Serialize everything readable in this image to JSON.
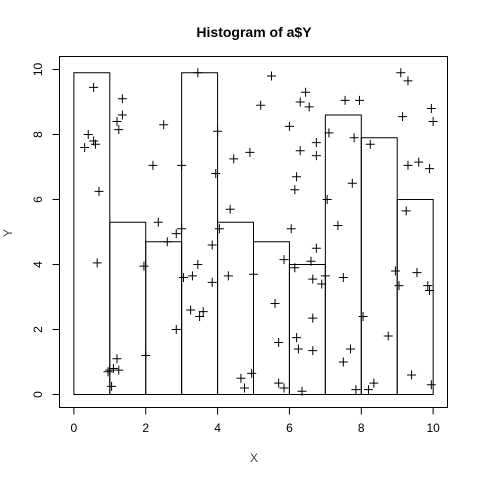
{
  "chart_data": {
    "type": "histogram-overlay-scatter",
    "title": "Histogram of a$Y",
    "xlabel": "X",
    "ylabel": "Y",
    "xlim": [
      -0.4,
      10.4
    ],
    "ylim": [
      -0.4,
      10.4
    ],
    "xticks": [
      0,
      2,
      4,
      6,
      8,
      10
    ],
    "yticks": [
      0,
      2,
      4,
      6,
      8,
      10
    ],
    "grid": false,
    "bars": [
      {
        "x0": 0,
        "x1": 1,
        "height": 9.9
      },
      {
        "x0": 1,
        "x1": 2,
        "height": 5.3
      },
      {
        "x0": 2,
        "x1": 3,
        "height": 4.7
      },
      {
        "x0": 3,
        "x1": 4,
        "height": 9.9
      },
      {
        "x0": 4,
        "x1": 5,
        "height": 5.3
      },
      {
        "x0": 5,
        "x1": 6,
        "height": 4.7
      },
      {
        "x0": 6,
        "x1": 7,
        "height": 4.0
      },
      {
        "x0": 7,
        "x1": 8,
        "height": 8.6
      },
      {
        "x0": 8,
        "x1": 9,
        "height": 7.9
      },
      {
        "x0": 9,
        "x1": 10,
        "height": 6.0
      }
    ],
    "points": [
      [
        0.3,
        7.6
      ],
      [
        0.4,
        8.0
      ],
      [
        0.55,
        7.8
      ],
      [
        0.6,
        7.7
      ],
      [
        0.55,
        9.45
      ],
      [
        0.65,
        4.05
      ],
      [
        0.7,
        6.25
      ],
      [
        0.95,
        0.7
      ],
      [
        1.0,
        0.75
      ],
      [
        1.05,
        0.25
      ],
      [
        1.1,
        0.8
      ],
      [
        1.2,
        1.1
      ],
      [
        1.25,
        0.75
      ],
      [
        1.2,
        8.4
      ],
      [
        1.25,
        8.15
      ],
      [
        1.35,
        8.6
      ],
      [
        1.35,
        9.1
      ],
      [
        1.95,
        3.95
      ],
      [
        2.0,
        1.2
      ],
      [
        2.2,
        7.05
      ],
      [
        2.35,
        5.3
      ],
      [
        2.5,
        8.3
      ],
      [
        2.6,
        4.7
      ],
      [
        2.85,
        4.95
      ],
      [
        2.85,
        2.0
      ],
      [
        3.0,
        5.1
      ],
      [
        3.05,
        3.6
      ],
      [
        3.0,
        7.05
      ],
      [
        3.25,
        2.6
      ],
      [
        3.3,
        3.65
      ],
      [
        3.45,
        4.0
      ],
      [
        3.5,
        2.4
      ],
      [
        3.6,
        2.55
      ],
      [
        3.45,
        9.9
      ],
      [
        3.85,
        3.45
      ],
      [
        3.85,
        4.6
      ],
      [
        3.95,
        6.8
      ],
      [
        4.0,
        8.1
      ],
      [
        4.05,
        5.1
      ],
      [
        4.3,
        3.65
      ],
      [
        4.35,
        5.7
      ],
      [
        4.45,
        7.25
      ],
      [
        4.65,
        0.5
      ],
      [
        4.75,
        0.2
      ],
      [
        4.9,
        7.45
      ],
      [
        4.95,
        0.65
      ],
      [
        5.0,
        3.7
      ],
      [
        5.2,
        8.9
      ],
      [
        5.5,
        9.8
      ],
      [
        5.6,
        2.8
      ],
      [
        5.7,
        1.6
      ],
      [
        5.7,
        0.35
      ],
      [
        5.85,
        0.2
      ],
      [
        5.85,
        4.15
      ],
      [
        6.0,
        8.25
      ],
      [
        6.05,
        5.1
      ],
      [
        6.15,
        3.9
      ],
      [
        6.15,
        6.3
      ],
      [
        6.2,
        6.7
      ],
      [
        6.2,
        1.75
      ],
      [
        6.25,
        1.4
      ],
      [
        6.3,
        9.0
      ],
      [
        6.3,
        7.5
      ],
      [
        6.35,
        0.1
      ],
      [
        6.45,
        9.3
      ],
      [
        6.55,
        8.85
      ],
      [
        6.6,
        4.1
      ],
      [
        6.65,
        3.55
      ],
      [
        6.65,
        2.35
      ],
      [
        6.65,
        1.35
      ],
      [
        6.75,
        7.35
      ],
      [
        6.75,
        7.75
      ],
      [
        6.75,
        4.5
      ],
      [
        6.9,
        3.4
      ],
      [
        7.0,
        3.65
      ],
      [
        7.05,
        6.0
      ],
      [
        7.1,
        8.05
      ],
      [
        7.35,
        5.2
      ],
      [
        7.5,
        3.6
      ],
      [
        7.5,
        1.0
      ],
      [
        7.55,
        9.05
      ],
      [
        7.7,
        1.4
      ],
      [
        7.75,
        6.5
      ],
      [
        7.8,
        7.9
      ],
      [
        7.95,
        9.05
      ],
      [
        7.85,
        0.15
      ],
      [
        8.05,
        2.4
      ],
      [
        8.2,
        0.15
      ],
      [
        8.25,
        7.7
      ],
      [
        8.35,
        0.35
      ],
      [
        8.75,
        1.8
      ],
      [
        8.95,
        3.8
      ],
      [
        9.05,
        3.35
      ],
      [
        9.1,
        9.9
      ],
      [
        9.15,
        8.55
      ],
      [
        9.25,
        5.65
      ],
      [
        9.3,
        7.05
      ],
      [
        9.3,
        9.65
      ],
      [
        9.4,
        0.6
      ],
      [
        9.55,
        3.75
      ],
      [
        9.6,
        7.15
      ],
      [
        9.85,
        3.35
      ],
      [
        9.9,
        3.2
      ],
      [
        9.9,
        6.95
      ],
      [
        9.95,
        8.8
      ],
      [
        10.0,
        8.4
      ],
      [
        9.95,
        0.3
      ]
    ]
  }
}
